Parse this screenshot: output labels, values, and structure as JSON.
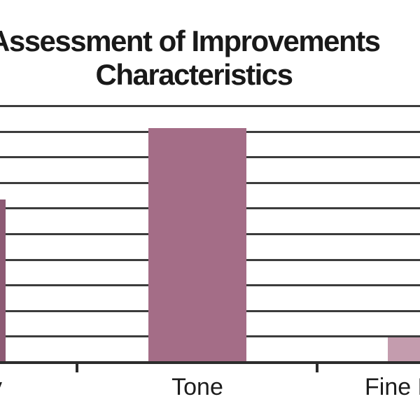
{
  "chart_data": {
    "type": "bar",
    "title_lines": [
      "Assessment of Improvements",
      "Characteristics"
    ],
    "categories": [
      "y",
      "Tone",
      "Fine L"
    ],
    "x_tick_labels_visible": [
      "y",
      "Tone",
      "Fine L"
    ],
    "values": [
      63,
      91,
      10
    ],
    "ylim": [
      0,
      100
    ],
    "gridline_step": 10,
    "gridline_values": [
      10,
      20,
      30,
      40,
      50,
      60,
      70,
      80,
      90,
      100
    ],
    "bar_colors": [
      "#8d5a74",
      "#a46d87",
      "#c49cae"
    ],
    "gridline_color": "#3c3c3c",
    "axis_color": "#2c2c2c",
    "title_color": "#191919",
    "label_color": "#1c1c1c",
    "background_color": "#ffffff",
    "legend_position": "none",
    "xlabel": "",
    "ylabel": ""
  }
}
